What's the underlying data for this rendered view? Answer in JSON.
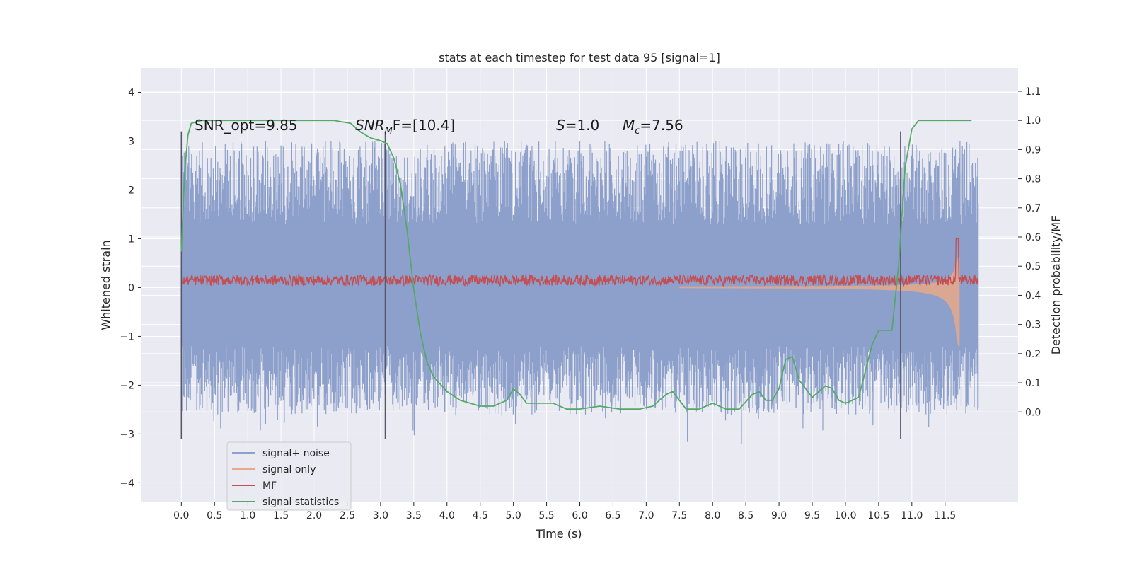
{
  "chart_data": {
    "type": "line",
    "title": "stats at each timestep for test data 95 [signal=1]",
    "xlabel": "Time (s)",
    "ylabel": "Whitened strain",
    "ylabel_right": "Detection probability/MF",
    "xlim": [
      -0.6,
      12.6
    ],
    "ylim": [
      -4.4,
      4.5
    ],
    "ylim_right": [
      -0.31,
      1.18
    ],
    "xticks": [
      "0.0",
      "0.5",
      "1.0",
      "1.5",
      "2.0",
      "2.5",
      "3.0",
      "3.5",
      "4.0",
      "4.5",
      "5.0",
      "5.5",
      "6.0",
      "6.5",
      "7.0",
      "7.5",
      "8.0",
      "8.5",
      "9.0",
      "9.5",
      "10.0",
      "10.5",
      "11.0",
      "11.5"
    ],
    "yticks": [
      "−4",
      "−3",
      "−2",
      "−1",
      "0",
      "1",
      "2",
      "3",
      "4"
    ],
    "yticks_right": [
      "0.0",
      "0.1",
      "0.2",
      "0.3",
      "0.4",
      "0.5",
      "0.6",
      "0.7",
      "0.8",
      "0.9",
      "1.0",
      "1.1"
    ],
    "grid": true,
    "legend_position": "lower-left",
    "annotations": {
      "snr_opt": "SNR_opt=9.85",
      "snr_mf_base": "SNR",
      "snr_mf_sub": "M",
      "snr_mf_rest": "F=[10.4]",
      "s_italic": "S",
      "s_rest": "=1.0",
      "mc_italic": "M",
      "mc_sub": "c",
      "mc_rest": "=7.56"
    },
    "vertical_lines_x": [
      0.0,
      3.07,
      10.83
    ],
    "series": [
      {
        "name": "signal+ noise",
        "color": "#8da0cb",
        "noise_envelope": [
          -2.6,
          3.0
        ]
      },
      {
        "name": "signal only",
        "color": "#e8a88a"
      },
      {
        "name": "MF",
        "color": "#c44e52"
      },
      {
        "name": "signal statistics",
        "color": "#55a868",
        "axis": "right",
        "x": [
          0.0,
          0.05,
          0.1,
          0.15,
          0.3,
          0.6,
          1.0,
          1.5,
          2.0,
          2.3,
          2.55,
          2.7,
          2.85,
          3.0,
          3.1,
          3.2,
          3.3,
          3.4,
          3.5,
          3.6,
          3.7,
          3.8,
          4.0,
          4.2,
          4.5,
          4.7,
          4.9,
          5.0,
          5.1,
          5.2,
          5.4,
          5.6,
          5.8,
          6.0,
          6.3,
          6.6,
          6.9,
          7.1,
          7.3,
          7.4,
          7.5,
          7.6,
          7.8,
          8.0,
          8.2,
          8.4,
          8.6,
          8.7,
          8.8,
          8.9,
          9.0,
          9.1,
          9.2,
          9.3,
          9.5,
          9.7,
          9.8,
          9.9,
          10.0,
          10.2,
          10.3,
          10.4,
          10.5,
          10.6,
          10.7,
          10.8,
          10.9,
          11.0,
          11.1,
          11.3,
          11.5,
          11.7,
          11.9
        ],
        "values": [
          0.55,
          0.82,
          0.95,
          0.99,
          1.0,
          1.0,
          1.0,
          1.0,
          1.0,
          1.0,
          0.99,
          0.96,
          0.94,
          0.93,
          0.92,
          0.87,
          0.78,
          0.62,
          0.42,
          0.27,
          0.17,
          0.12,
          0.07,
          0.04,
          0.02,
          0.02,
          0.04,
          0.08,
          0.06,
          0.03,
          0.03,
          0.03,
          0.01,
          0.01,
          0.02,
          0.01,
          0.01,
          0.02,
          0.06,
          0.07,
          0.04,
          0.01,
          0.01,
          0.03,
          0.01,
          0.01,
          0.06,
          0.07,
          0.04,
          0.04,
          0.08,
          0.18,
          0.19,
          0.11,
          0.05,
          0.09,
          0.08,
          0.04,
          0.03,
          0.05,
          0.14,
          0.23,
          0.28,
          0.28,
          0.28,
          0.5,
          0.84,
          0.97,
          1.0,
          1.0,
          1.0,
          1.0,
          1.0
        ]
      }
    ]
  }
}
